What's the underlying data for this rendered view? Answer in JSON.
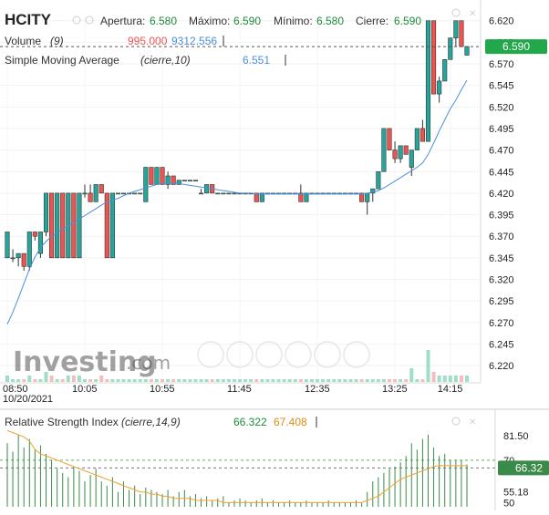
{
  "header": {
    "symbol": "HCITY",
    "open_label": "Apertura:",
    "open_value": "6.580",
    "high_label": "Máximo:",
    "high_value": "6.590",
    "low_label": "Mínimo:",
    "low_value": "6.580",
    "close_label": "Cierre:",
    "close_value": "6.590"
  },
  "volume_legend": {
    "label": "Volume",
    "param": "(9)",
    "value_red": "995.000",
    "value_blue": "9312.556"
  },
  "sma_legend": {
    "label": "Simple Moving Average",
    "param": "(cierre,10)",
    "value": "6.551"
  },
  "rsi_legend": {
    "label": "Relative Strength Index",
    "param": "(cierre,14,9)",
    "value1": "66.322",
    "value2": "67.408"
  },
  "watermark": "Investing",
  "watermark_suffix": ".com",
  "price_badge": "6.590",
  "rsi_badge": "66.32",
  "colors": {
    "up": "#26a69a",
    "down": "#ef5350",
    "sma": "#4a90d9",
    "rsi": "#3a8a4a",
    "rsi_signal": "#f0a030"
  },
  "chart_data": [
    {
      "type": "candlestick",
      "x_ticks": [
        "08:50",
        "10:05",
        "10:55",
        "11:45",
        "12:35",
        "13:25",
        "14:15"
      ],
      "x_date": "10/20/2021",
      "y_ticks": [
        "6.620",
        "6.595",
        "6.570",
        "6.545",
        "6.520",
        "6.495",
        "6.470",
        "6.445",
        "6.420",
        "6.395",
        "6.370",
        "6.345",
        "6.320",
        "6.295",
        "6.270",
        "6.245",
        "6.220"
      ],
      "ylim": [
        6.2,
        6.625
      ],
      "candles": [
        [
          6.345,
          6.375,
          6.345,
          6.375
        ],
        [
          6.345,
          6.355,
          6.34,
          6.345
        ],
        [
          6.345,
          6.35,
          6.335,
          6.35
        ],
        [
          6.35,
          6.35,
          6.33,
          6.335
        ],
        [
          6.335,
          6.375,
          6.33,
          6.375
        ],
        [
          6.375,
          6.375,
          6.365,
          6.37
        ],
        [
          6.35,
          6.375,
          6.345,
          6.375
        ],
        [
          6.375,
          6.42,
          6.37,
          6.42
        ],
        [
          6.42,
          6.42,
          6.345,
          6.345
        ],
        [
          6.345,
          6.42,
          6.345,
          6.42
        ],
        [
          6.42,
          6.42,
          6.345,
          6.345
        ],
        [
          6.345,
          6.42,
          6.345,
          6.42
        ],
        [
          6.42,
          6.42,
          6.345,
          6.345
        ],
        [
          6.345,
          6.42,
          6.345,
          6.42
        ],
        [
          6.42,
          6.43,
          6.415,
          6.42
        ],
        [
          6.42,
          6.43,
          6.41,
          6.41
        ],
        [
          6.41,
          6.43,
          6.41,
          6.43
        ],
        [
          6.43,
          6.43,
          6.42,
          6.42
        ],
        [
          6.42,
          6.42,
          6.345,
          6.345
        ],
        [
          6.345,
          6.42,
          6.345,
          6.42
        ],
        [
          6.42,
          6.42,
          6.42,
          6.42
        ],
        [
          6.42,
          6.42,
          6.42,
          6.42
        ],
        [
          6.42,
          6.42,
          6.42,
          6.42
        ],
        [
          6.42,
          6.42,
          6.42,
          6.42
        ],
        [
          6.42,
          6.42,
          6.42,
          6.42
        ],
        [
          6.41,
          6.45,
          6.41,
          6.45
        ],
        [
          6.45,
          6.45,
          6.43,
          6.43
        ],
        [
          6.43,
          6.45,
          6.43,
          6.45
        ],
        [
          6.45,
          6.45,
          6.43,
          6.43
        ],
        [
          6.43,
          6.445,
          6.425,
          6.44
        ],
        [
          6.44,
          6.44,
          6.43,
          6.43
        ],
        [
          6.43,
          6.435,
          6.43,
          6.435
        ],
        [
          6.435,
          6.435,
          6.435,
          6.435
        ],
        [
          6.435,
          6.435,
          6.435,
          6.435
        ],
        [
          6.435,
          6.435,
          6.435,
          6.435
        ],
        [
          6.42,
          6.425,
          6.42,
          6.42
        ],
        [
          6.42,
          6.43,
          6.42,
          6.43
        ],
        [
          6.43,
          6.43,
          6.42,
          6.42
        ],
        [
          6.42,
          6.42,
          6.42,
          6.42
        ],
        [
          6.42,
          6.42,
          6.42,
          6.42
        ],
        [
          6.42,
          6.42,
          6.42,
          6.42
        ],
        [
          6.42,
          6.42,
          6.42,
          6.42
        ],
        [
          6.42,
          6.42,
          6.42,
          6.42
        ],
        [
          6.42,
          6.42,
          6.42,
          6.42
        ],
        [
          6.42,
          6.42,
          6.42,
          6.42
        ],
        [
          6.42,
          6.42,
          6.41,
          6.41
        ],
        [
          6.41,
          6.42,
          6.41,
          6.42
        ],
        [
          6.42,
          6.42,
          6.42,
          6.42
        ],
        [
          6.42,
          6.42,
          6.42,
          6.42
        ],
        [
          6.42,
          6.42,
          6.42,
          6.42
        ],
        [
          6.42,
          6.42,
          6.42,
          6.42
        ],
        [
          6.42,
          6.42,
          6.42,
          6.42
        ],
        [
          6.42,
          6.42,
          6.42,
          6.42
        ],
        [
          6.42,
          6.43,
          6.41,
          6.41
        ],
        [
          6.41,
          6.42,
          6.41,
          6.42
        ],
        [
          6.42,
          6.42,
          6.42,
          6.42
        ],
        [
          6.42,
          6.42,
          6.42,
          6.42
        ],
        [
          6.42,
          6.42,
          6.42,
          6.42
        ],
        [
          6.42,
          6.42,
          6.42,
          6.42
        ],
        [
          6.42,
          6.42,
          6.42,
          6.42
        ],
        [
          6.42,
          6.42,
          6.42,
          6.42
        ],
        [
          6.42,
          6.42,
          6.42,
          6.42
        ],
        [
          6.42,
          6.42,
          6.42,
          6.42
        ],
        [
          6.42,
          6.42,
          6.42,
          6.42
        ],
        [
          6.42,
          6.42,
          6.41,
          6.41
        ],
        [
          6.41,
          6.42,
          6.395,
          6.42
        ],
        [
          6.42,
          6.425,
          6.41,
          6.425
        ],
        [
          6.425,
          6.445,
          6.425,
          6.445
        ],
        [
          6.445,
          6.495,
          6.445,
          6.495
        ],
        [
          6.495,
          6.495,
          6.47,
          6.47
        ],
        [
          6.47,
          6.48,
          6.455,
          6.46
        ],
        [
          6.46,
          6.475,
          6.455,
          6.475
        ],
        [
          6.475,
          6.475,
          6.465,
          6.465
        ],
        [
          6.45,
          6.47,
          6.44,
          6.47
        ],
        [
          6.47,
          6.495,
          6.47,
          6.495
        ],
        [
          6.495,
          6.505,
          6.48,
          6.48
        ],
        [
          6.48,
          6.62,
          6.48,
          6.62
        ],
        [
          6.62,
          6.62,
          6.535,
          6.535
        ],
        [
          6.535,
          6.555,
          6.525,
          6.55
        ],
        [
          6.55,
          6.575,
          6.55,
          6.575
        ],
        [
          6.575,
          6.6,
          6.575,
          6.6
        ],
        [
          6.6,
          6.62,
          6.59,
          6.62
        ],
        [
          6.62,
          6.62,
          6.59,
          6.59
        ],
        [
          6.58,
          6.59,
          6.58,
          6.59
        ]
      ],
      "candle_note": "Candles read approximately; each as [open, high, low, close].",
      "sma": [
        6.268,
        6.282,
        6.298,
        6.315,
        6.332,
        6.346,
        6.357,
        6.364,
        6.37,
        6.374,
        6.378,
        6.382,
        6.386,
        6.39,
        6.394,
        6.398,
        6.402,
        6.406,
        6.41,
        6.412,
        6.414,
        6.417,
        6.42,
        6.422,
        6.424,
        6.426,
        6.428,
        6.43,
        6.431,
        6.432,
        6.432,
        6.431,
        6.43,
        6.429,
        6.428,
        6.427,
        6.426,
        6.425,
        6.424,
        6.423,
        6.422,
        6.421,
        6.42,
        6.42,
        6.42,
        6.419,
        6.419,
        6.419,
        6.419,
        6.419,
        6.419,
        6.419,
        6.419,
        6.419,
        6.419,
        6.419,
        6.419,
        6.419,
        6.419,
        6.419,
        6.419,
        6.419,
        6.419,
        6.419,
        6.419,
        6.42,
        6.421,
        6.423,
        6.426,
        6.43,
        6.434,
        6.438,
        6.442,
        6.446,
        6.45,
        6.455,
        6.465,
        6.478,
        6.492,
        6.505,
        6.518,
        6.528,
        6.54,
        6.551
      ],
      "volume": [
        1,
        0,
        0,
        0,
        1,
        0,
        0,
        2,
        1,
        0,
        0,
        1,
        1,
        1,
        0,
        0,
        0,
        1,
        0,
        0,
        0,
        0,
        0,
        0,
        0,
        0,
        0,
        0,
        0,
        0,
        0,
        0,
        0,
        0,
        0,
        0,
        0,
        0,
        0,
        0,
        0,
        0,
        0,
        0,
        0,
        0,
        0,
        0,
        0,
        0,
        0,
        0,
        0,
        0,
        0,
        0,
        0,
        0,
        0,
        0,
        0,
        0,
        0,
        0,
        0,
        0,
        0,
        0,
        0,
        0,
        0,
        0,
        0,
        3,
        0,
        0,
        8,
        2,
        1,
        1,
        1,
        1,
        1,
        1
      ]
    },
    {
      "type": "line",
      "title": "Relative Strength Index",
      "y_ticks": [
        "81.50",
        "70",
        "55.18",
        "50"
      ],
      "ylim": [
        48,
        85
      ],
      "guides": [
        70,
        66.32
      ],
      "rsi": [
        84,
        83,
        82,
        81,
        79,
        75,
        73,
        72,
        71,
        70,
        69,
        68,
        67,
        66,
        65,
        64,
        63,
        62,
        61,
        60,
        59,
        58,
        57,
        56,
        55,
        55,
        54,
        54,
        53,
        53,
        52,
        52,
        52,
        52,
        51,
        51,
        51,
        51,
        51,
        50,
        50,
        50,
        50,
        50,
        50,
        50,
        50,
        50,
        50,
        50,
        50,
        50,
        50,
        50,
        50,
        50,
        50,
        50,
        50,
        50,
        50,
        50,
        50,
        50,
        50,
        51,
        52,
        53,
        55,
        57,
        59,
        61,
        62,
        63,
        64,
        65,
        66,
        67,
        67.5,
        67.4,
        67.4,
        67.4,
        67.4,
        67.4
      ],
      "rsi_bars": [
        78,
        74,
        82,
        76,
        80,
        75,
        77,
        73,
        70,
        66,
        64,
        62,
        67,
        65,
        60,
        63,
        66,
        60,
        58,
        62,
        55,
        60,
        56,
        58,
        54,
        57,
        56,
        55,
        54,
        56,
        53,
        55,
        56,
        53,
        54,
        52,
        53,
        51,
        52,
        53,
        50,
        51,
        52,
        51,
        50,
        51,
        52,
        50,
        51,
        50,
        50,
        51,
        50,
        50,
        51,
        50,
        50,
        50,
        51,
        50,
        50,
        50,
        50,
        51,
        50,
        55,
        60,
        62,
        64,
        66,
        67,
        69,
        72,
        78,
        75,
        80,
        82,
        76,
        72,
        73,
        70,
        70,
        70,
        68
      ]
    }
  ]
}
